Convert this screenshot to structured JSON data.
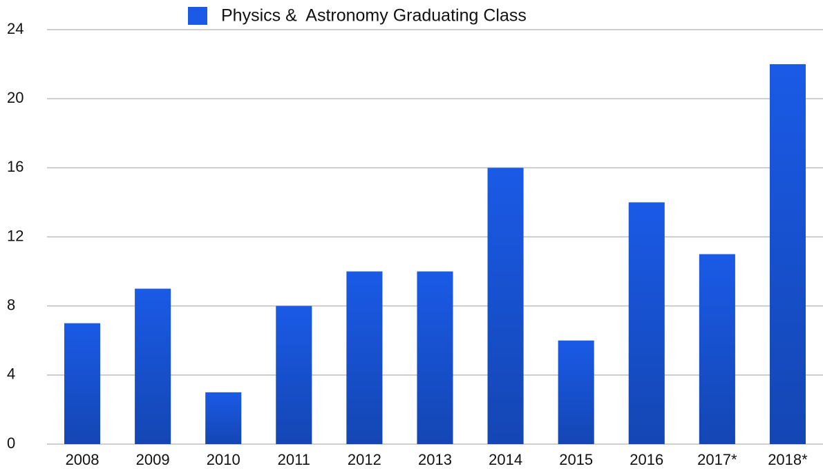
{
  "chart_data": {
    "type": "bar",
    "categories": [
      "2008",
      "2009",
      "2010",
      "2011",
      "2012",
      "2013",
      "2014",
      "2015",
      "2016",
      "2017*",
      "2018*"
    ],
    "series": [
      {
        "name": "Physics &  Astronomy Graduating Class",
        "color": "#1a5ae6",
        "values": [
          7,
          9,
          3,
          8,
          10,
          10,
          16,
          6,
          14,
          11,
          22
        ]
      }
    ],
    "ylim": [
      0,
      24
    ],
    "yticks": [
      0,
      4,
      8,
      12,
      16,
      20,
      24
    ],
    "grid": true,
    "legend": "top"
  }
}
